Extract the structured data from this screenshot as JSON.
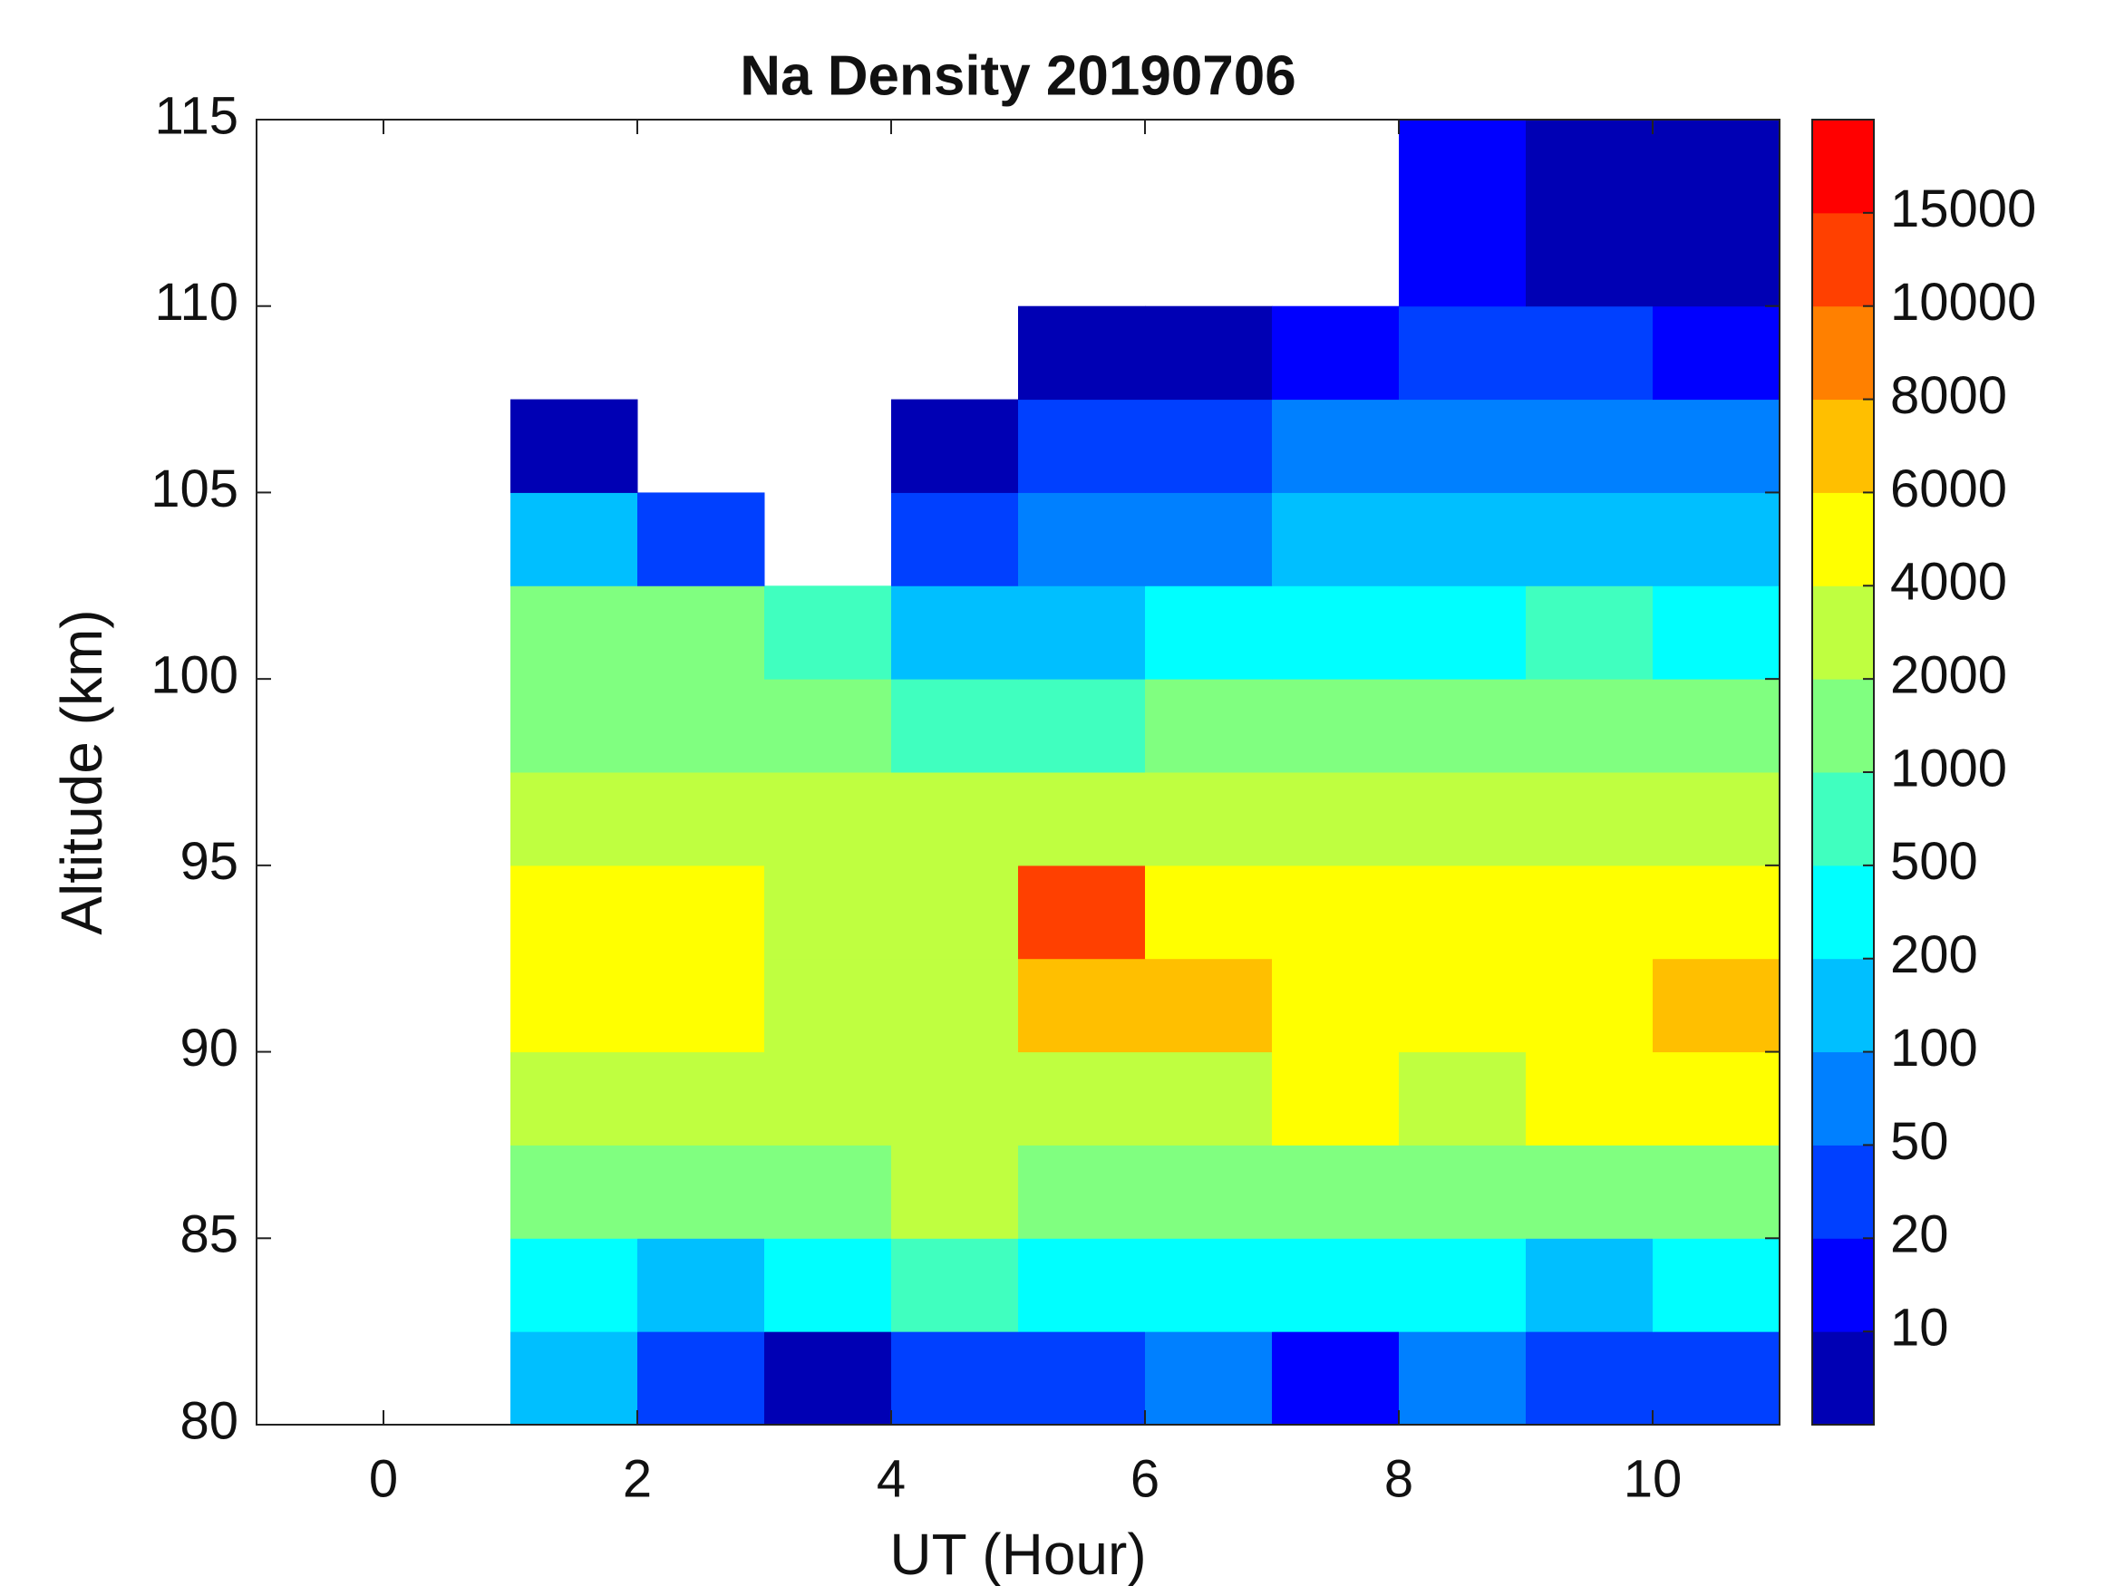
{
  "chart_data": {
    "type": "contour",
    "title": "Na Density 20190706",
    "xlabel": "UT (Hour)",
    "ylabel": "Altitude (km)",
    "xlim": [
      -1,
      11
    ],
    "xticks": [
      0,
      2,
      4,
      6,
      8,
      10
    ],
    "ylim": [
      80,
      115
    ],
    "yticks": [
      80,
      85,
      90,
      95,
      100,
      105,
      110,
      115
    ],
    "x": [
      1.5,
      2.5,
      3.5,
      4.5,
      5.5,
      6.5,
      7.5,
      8.5,
      9.5,
      10.5
    ],
    "y": [
      81.25,
      83.75,
      86.25,
      88.75,
      91.25,
      93.75,
      96.25,
      98.75,
      101.25,
      103.75,
      106.25,
      108.75,
      111.25,
      113.75
    ],
    "z": [
      [
        150,
        30,
        5,
        30,
        30,
        70,
        15,
        70,
        30,
        30
      ],
      [
        300,
        150,
        300,
        700,
        300,
        300,
        300,
        300,
        150,
        300
      ],
      [
        1500,
        1500,
        1500,
        3000,
        1500,
        1500,
        1500,
        1500,
        1500,
        1500
      ],
      [
        3000,
        3000,
        3000,
        3000,
        3000,
        3000,
        5000,
        3000,
        5000,
        5000
      ],
      [
        5000,
        5000,
        3000,
        3000,
        7000,
        7000,
        5000,
        5000,
        5000,
        7000
      ],
      [
        5000,
        5000,
        3000,
        3000,
        12000,
        5000,
        5000,
        5000,
        5000,
        5000
      ],
      [
        3000,
        3000,
        3000,
        3000,
        3000,
        3000,
        3000,
        3000,
        3000,
        3000
      ],
      [
        1500,
        1500,
        1500,
        700,
        700,
        1500,
        1500,
        1500,
        1500,
        1500
      ],
      [
        1500,
        1500,
        700,
        100,
        150,
        300,
        300,
        300,
        700,
        300
      ],
      [
        150,
        30,
        null,
        30,
        70,
        70,
        150,
        150,
        150,
        150
      ],
      [
        5,
        null,
        null,
        5,
        30,
        30,
        70,
        70,
        70,
        70
      ],
      [
        null,
        null,
        null,
        null,
        5,
        5,
        15,
        30,
        30,
        15
      ],
      [
        null,
        null,
        null,
        null,
        null,
        null,
        null,
        15,
        5,
        5
      ],
      [
        null,
        null,
        null,
        null,
        null,
        null,
        null,
        15,
        5,
        5
      ]
    ],
    "levels": [
      10,
      20,
      50,
      100,
      200,
      500,
      1000,
      2000,
      4000,
      6000,
      8000,
      10000,
      15000
    ],
    "colors": [
      "#0000b4",
      "#0000ff",
      "#0040ff",
      "#0080ff",
      "#00bfff",
      "#00ffff",
      "#40ffbf",
      "#80ff80",
      "#bfff40",
      "#ffff00",
      "#ffbf00",
      "#ff8000",
      "#ff4000",
      "#ff0000"
    ]
  }
}
